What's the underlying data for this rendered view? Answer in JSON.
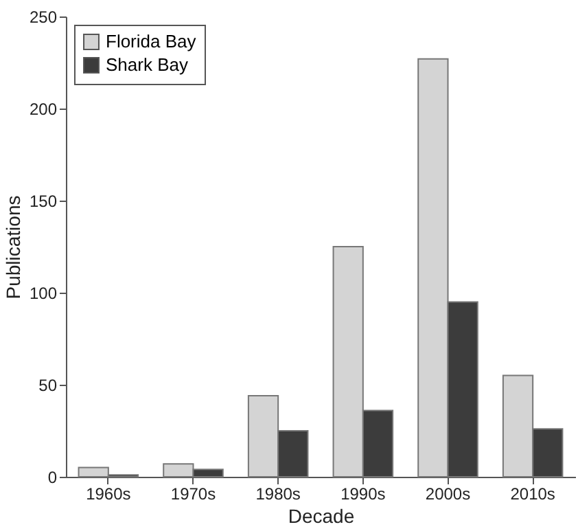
{
  "chart_data": {
    "type": "bar",
    "xlabel": "Decade",
    "ylabel": "Publications",
    "categories": [
      "1960s",
      "1970s",
      "1980s",
      "1990s",
      "2000s",
      "2010s"
    ],
    "series": [
      {
        "name": "Florida Bay",
        "color": "#d4d4d4",
        "values": [
          5,
          7,
          44,
          125,
          227,
          55
        ]
      },
      {
        "name": "Shark Bay",
        "color": "#3c3c3c",
        "values": [
          1,
          4,
          25,
          36,
          95,
          26
        ]
      }
    ],
    "ylim": [
      0,
      250
    ],
    "yticks": [
      0,
      50,
      100,
      150,
      200,
      250
    ],
    "grid": false,
    "legend": "top left"
  }
}
